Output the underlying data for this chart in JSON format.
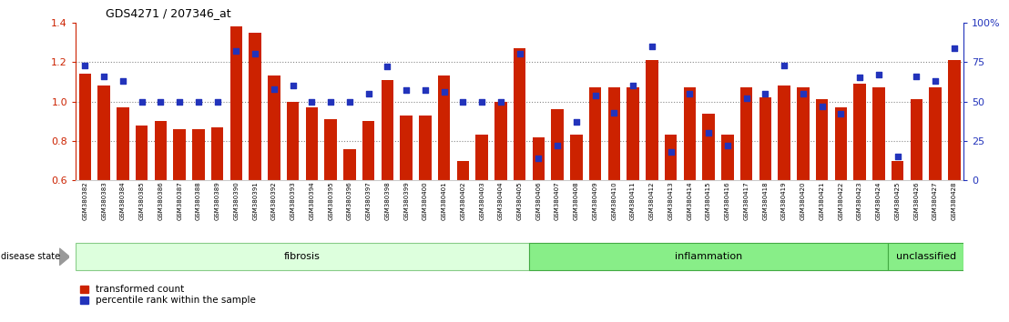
{
  "title": "GDS4271 / 207346_at",
  "samples": [
    "GSM380382",
    "GSM380383",
    "GSM380384",
    "GSM380385",
    "GSM380386",
    "GSM380387",
    "GSM380388",
    "GSM380389",
    "GSM380390",
    "GSM380391",
    "GSM380392",
    "GSM380393",
    "GSM380394",
    "GSM380395",
    "GSM380396",
    "GSM380397",
    "GSM380398",
    "GSM380399",
    "GSM380400",
    "GSM380401",
    "GSM380402",
    "GSM380403",
    "GSM380404",
    "GSM380405",
    "GSM380406",
    "GSM380407",
    "GSM380408",
    "GSM380409",
    "GSM380410",
    "GSM380411",
    "GSM380412",
    "GSM380413",
    "GSM380414",
    "GSM380415",
    "GSM380416",
    "GSM380417",
    "GSM380418",
    "GSM380419",
    "GSM380420",
    "GSM380421",
    "GSM380422",
    "GSM380423",
    "GSM380424",
    "GSM380425",
    "GSM380426",
    "GSM380427",
    "GSM380428"
  ],
  "bar_values": [
    1.14,
    1.08,
    0.97,
    0.88,
    0.9,
    0.86,
    0.86,
    0.87,
    1.38,
    1.35,
    1.13,
    1.0,
    0.97,
    0.91,
    0.76,
    0.9,
    1.11,
    0.93,
    0.93,
    1.13,
    0.7,
    0.83,
    1.0,
    1.27,
    0.82,
    0.96,
    0.83,
    1.07,
    1.07,
    1.07,
    1.21,
    0.83,
    1.07,
    0.94,
    0.83,
    1.07,
    1.02,
    1.08,
    1.07,
    1.01,
    0.97,
    1.09,
    1.07,
    0.7,
    1.01,
    1.07,
    1.21
  ],
  "percentile_values": [
    73,
    66,
    63,
    50,
    50,
    50,
    50,
    50,
    82,
    80,
    58,
    60,
    50,
    50,
    50,
    55,
    72,
    57,
    57,
    56,
    50,
    50,
    50,
    80,
    14,
    22,
    37,
    54,
    43,
    60,
    85,
    18,
    55,
    30,
    22,
    52,
    55,
    73,
    55,
    47,
    42,
    65,
    67,
    15,
    66,
    63,
    84
  ],
  "group_defs": [
    {
      "name": "fibrosis",
      "start": 0,
      "end": 23,
      "facecolor": "#ddffdd",
      "edgecolor": "#88cc88"
    },
    {
      "name": "inflammation",
      "start": 24,
      "end": 42,
      "facecolor": "#88ee88",
      "edgecolor": "#44aa44"
    },
    {
      "name": "unclassified",
      "start": 43,
      "end": 46,
      "facecolor": "#88ee88",
      "edgecolor": "#44aa44"
    }
  ],
  "ylim": [
    0.6,
    1.4
  ],
  "ylim_right": [
    0,
    100
  ],
  "yticks_left": [
    0.6,
    0.8,
    1.0,
    1.2,
    1.4
  ],
  "yticks_right": [
    0,
    25,
    50,
    75,
    100
  ],
  "ytick_right_labels": [
    "0",
    "25",
    "50",
    "75",
    "100%"
  ],
  "bar_color": "#cc2200",
  "dot_color": "#2233bb",
  "grid_color": "#888888",
  "axis_color_left": "#cc2200",
  "axis_color_right": "#2233bb",
  "disease_state_label": "disease state",
  "legend_items": [
    "transformed count",
    "percentile rank within the sample"
  ]
}
